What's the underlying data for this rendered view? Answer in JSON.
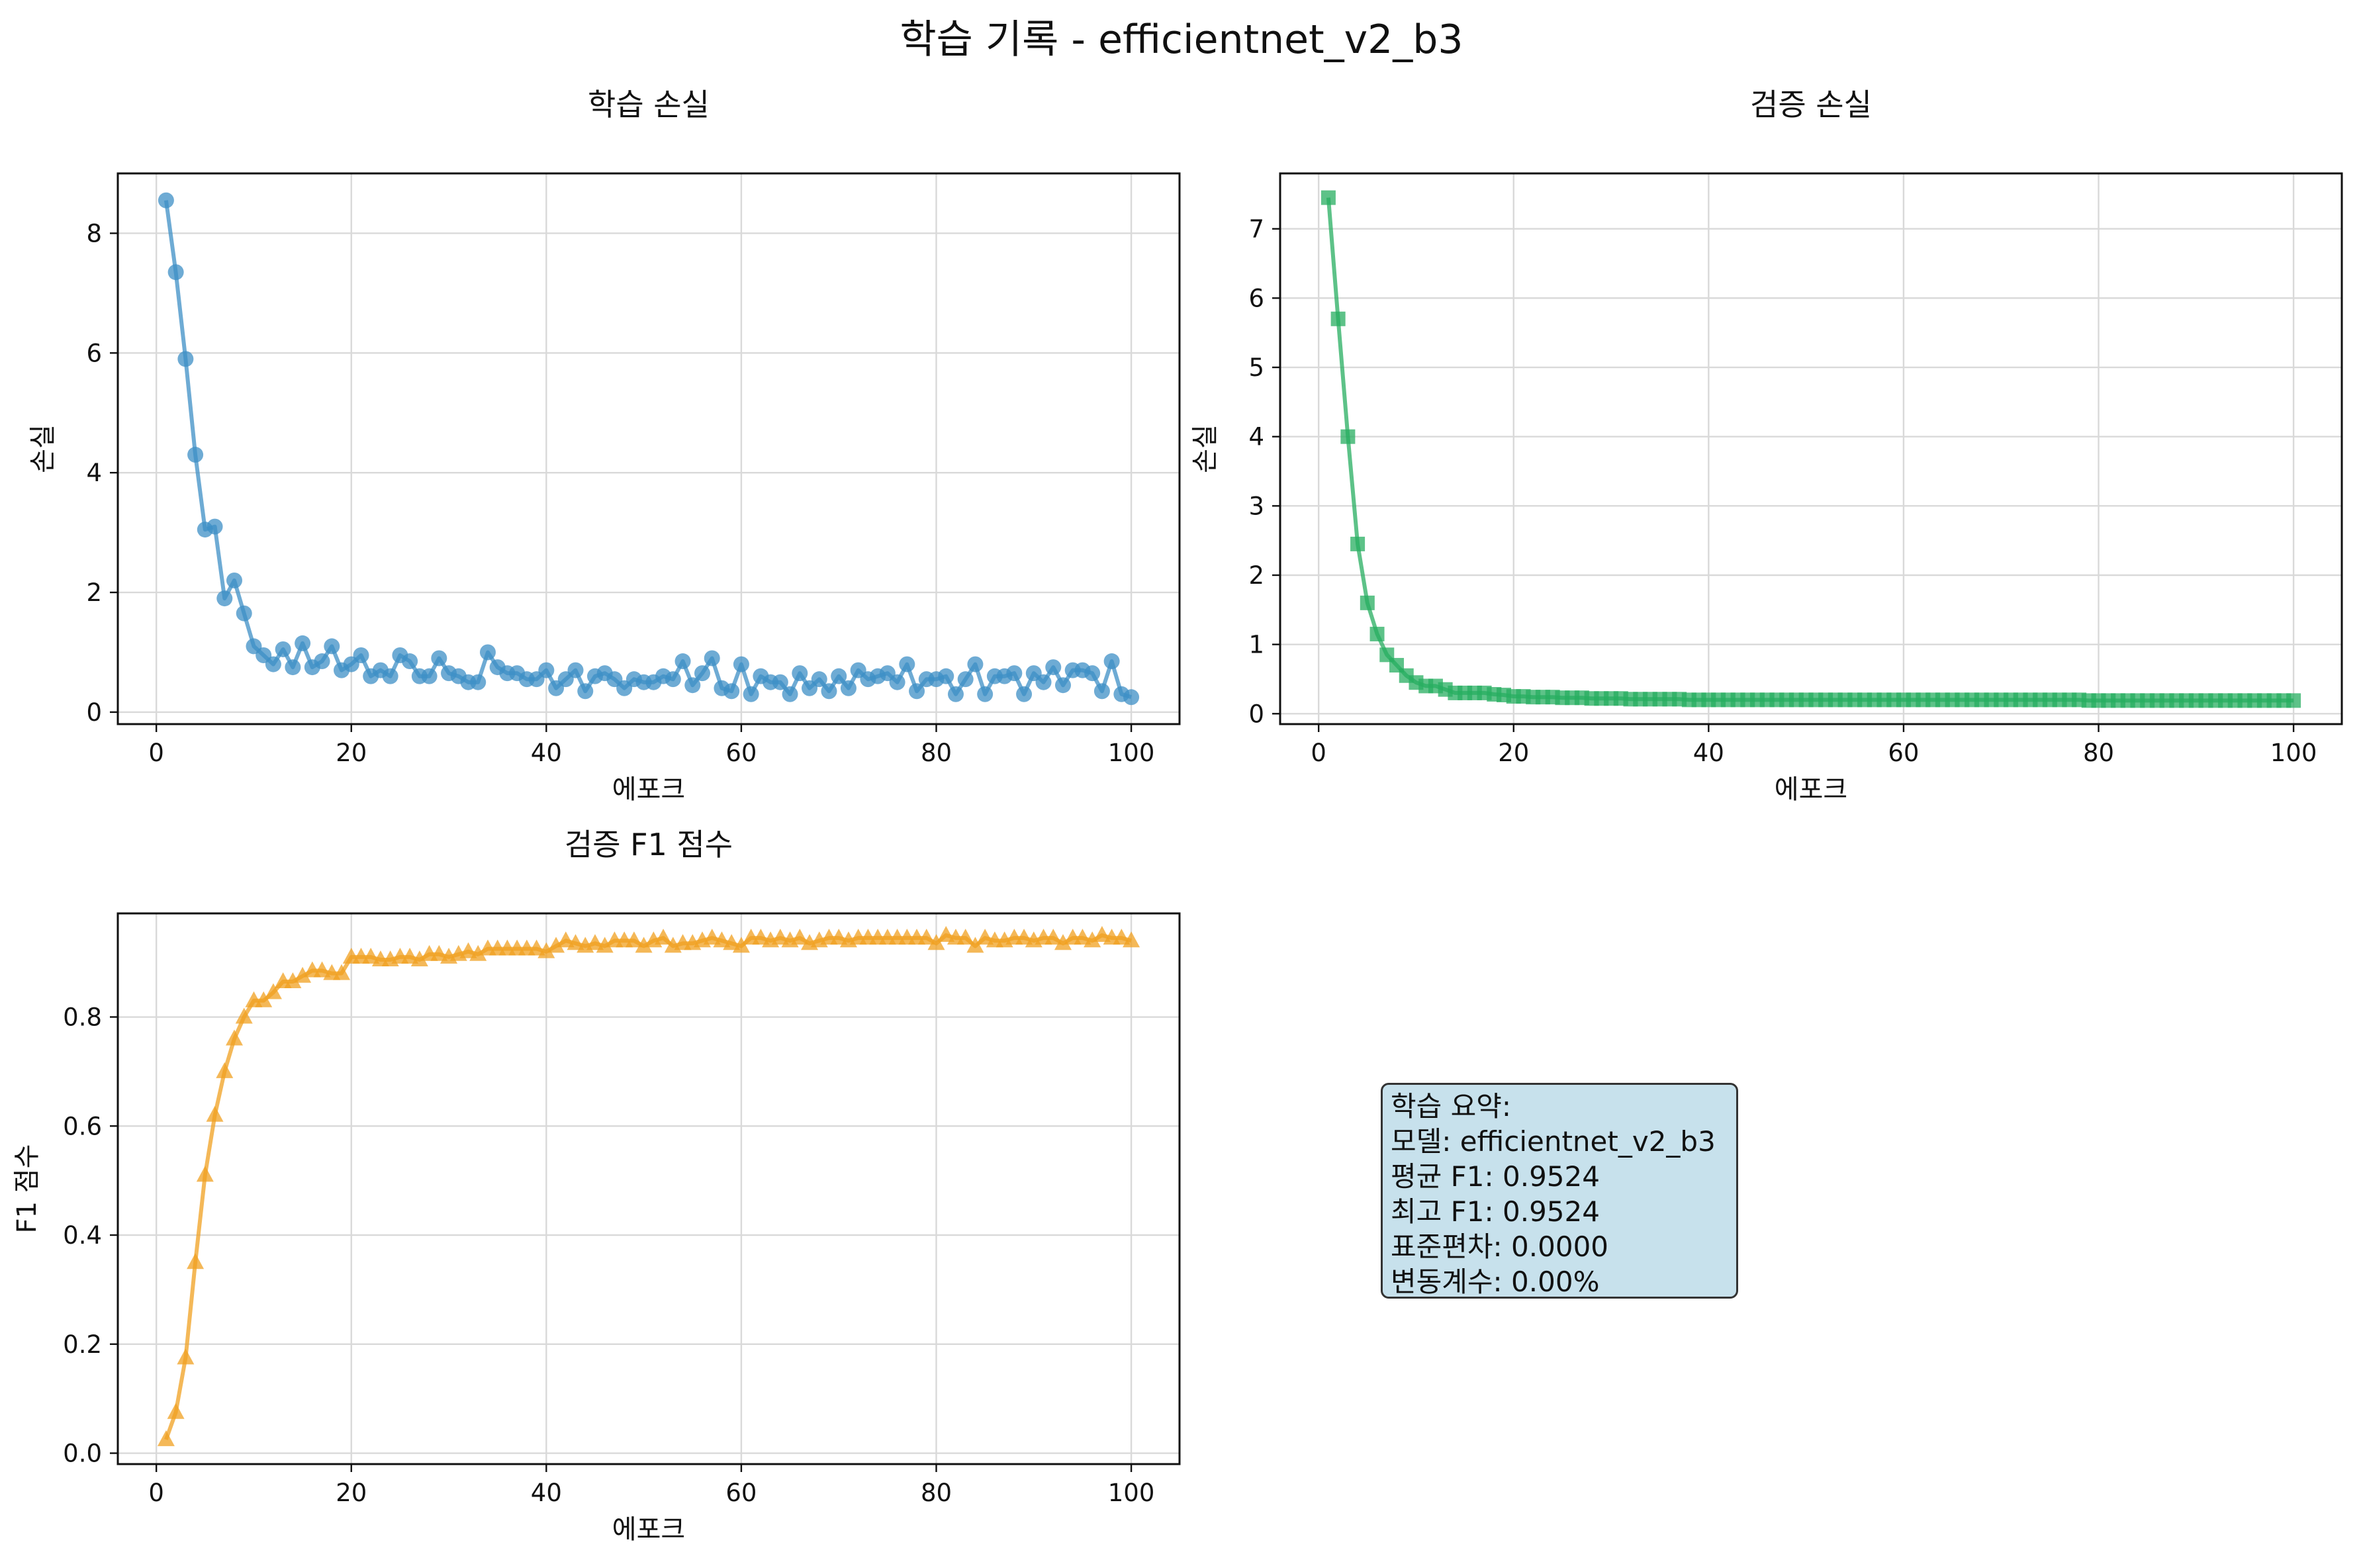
{
  "figure": {
    "title": "학습 기록 - efficientnet_v2_b3"
  },
  "summary": {
    "lines": [
      "학습 요약:",
      "모델: efficientnet_v2_b3",
      "평균 F1: 0.9524",
      "최고 F1: 0.9524",
      "표준편차: 0.0000",
      "변동계수: 0.00%"
    ]
  },
  "chart_data": [
    {
      "type": "line",
      "title": "학습 손실",
      "xlabel": "에포크",
      "ylabel": "손실",
      "xlim": [
        -3.95,
        104.95
      ],
      "ylim": [
        -0.2,
        9.0
      ],
      "xticks": [
        0,
        20,
        40,
        60,
        80,
        100
      ],
      "yticks": [
        0,
        2,
        4,
        6,
        8
      ],
      "ytick_labels": [
        "0",
        "2",
        "4",
        "6",
        "8"
      ],
      "grid": true,
      "marker": "circle",
      "color": "#3d8fc6",
      "series": [
        {
          "x": [
            1,
            2,
            3,
            4,
            5,
            6,
            7,
            8,
            9,
            10,
            11,
            12,
            13,
            14,
            15,
            16,
            17,
            18,
            19,
            20,
            21,
            22,
            23,
            24,
            25,
            26,
            27,
            28,
            29,
            30,
            31,
            32,
            33,
            34,
            35,
            36,
            37,
            38,
            39,
            40,
            41,
            42,
            43,
            44,
            45,
            46,
            47,
            48,
            49,
            50,
            51,
            52,
            53,
            54,
            55,
            56,
            57,
            58,
            59,
            60,
            61,
            62,
            63,
            64,
            65,
            66,
            67,
            68,
            69,
            70,
            71,
            72,
            73,
            74,
            75,
            76,
            77,
            78,
            79,
            80,
            81,
            82,
            83,
            84,
            85,
            86,
            87,
            88,
            89,
            90,
            91,
            92,
            93,
            94,
            95,
            96,
            97,
            98,
            99,
            100
          ],
          "values": [
            8.55,
            7.35,
            5.9,
            4.3,
            3.05,
            3.1,
            1.9,
            2.2,
            1.65,
            1.1,
            0.95,
            0.8,
            1.05,
            0.75,
            1.15,
            0.75,
            0.85,
            1.1,
            0.7,
            0.8,
            0.95,
            0.6,
            0.7,
            0.6,
            0.95,
            0.85,
            0.6,
            0.6,
            0.9,
            0.65,
            0.6,
            0.5,
            0.5,
            1.0,
            0.75,
            0.65,
            0.65,
            0.55,
            0.55,
            0.7,
            0.4,
            0.55,
            0.7,
            0.35,
            0.6,
            0.65,
            0.55,
            0.4,
            0.55,
            0.5,
            0.5,
            0.6,
            0.55,
            0.85,
            0.45,
            0.65,
            0.9,
            0.4,
            0.35,
            0.8,
            0.3,
            0.6,
            0.5,
            0.5,
            0.3,
            0.65,
            0.4,
            0.55,
            0.35,
            0.6,
            0.4,
            0.7,
            0.55,
            0.6,
            0.65,
            0.5,
            0.8,
            0.35,
            0.55,
            0.55,
            0.6,
            0.3,
            0.55,
            0.8,
            0.3,
            0.6,
            0.6,
            0.65,
            0.3,
            0.65,
            0.5,
            0.75,
            0.45,
            0.7,
            0.7,
            0.65,
            0.35,
            0.85,
            0.3,
            0.25
          ]
        }
      ]
    },
    {
      "type": "line",
      "title": "검증 손실",
      "xlabel": "에포크",
      "ylabel": "손실",
      "xlim": [
        -3.95,
        104.95
      ],
      "ylim": [
        -0.15,
        7.8
      ],
      "xticks": [
        0,
        20,
        40,
        60,
        80,
        100
      ],
      "yticks": [
        0,
        1,
        2,
        3,
        4,
        5,
        6,
        7
      ],
      "ytick_labels": [
        "0",
        "1",
        "2",
        "3",
        "4",
        "5",
        "6",
        "7"
      ],
      "grid": true,
      "marker": "square",
      "color": "#27ae60",
      "series": [
        {
          "x": [
            1,
            2,
            3,
            4,
            5,
            6,
            7,
            8,
            9,
            10,
            11,
            12,
            13,
            14,
            15,
            16,
            17,
            18,
            19,
            20,
            21,
            22,
            23,
            24,
            25,
            26,
            27,
            28,
            29,
            30,
            31,
            32,
            33,
            34,
            35,
            36,
            37,
            38,
            39,
            40,
            41,
            42,
            43,
            44,
            45,
            46,
            47,
            48,
            49,
            50,
            51,
            52,
            53,
            54,
            55,
            56,
            57,
            58,
            59,
            60,
            61,
            62,
            63,
            64,
            65,
            66,
            67,
            68,
            69,
            70,
            71,
            72,
            73,
            74,
            75,
            76,
            77,
            78,
            79,
            80,
            81,
            82,
            83,
            84,
            85,
            86,
            87,
            88,
            89,
            90,
            91,
            92,
            93,
            94,
            95,
            96,
            97,
            98,
            99,
            100
          ],
          "values": [
            7.45,
            5.7,
            4.0,
            2.45,
            1.6,
            1.15,
            0.85,
            0.7,
            0.55,
            0.45,
            0.4,
            0.4,
            0.35,
            0.3,
            0.3,
            0.3,
            0.3,
            0.28,
            0.27,
            0.25,
            0.25,
            0.24,
            0.24,
            0.24,
            0.23,
            0.23,
            0.23,
            0.22,
            0.22,
            0.22,
            0.22,
            0.21,
            0.21,
            0.21,
            0.21,
            0.21,
            0.21,
            0.2,
            0.2,
            0.2,
            0.2,
            0.2,
            0.2,
            0.2,
            0.2,
            0.2,
            0.2,
            0.2,
            0.2,
            0.2,
            0.2,
            0.2,
            0.2,
            0.2,
            0.2,
            0.2,
            0.2,
            0.2,
            0.2,
            0.2,
            0.2,
            0.2,
            0.2,
            0.2,
            0.2,
            0.2,
            0.2,
            0.2,
            0.2,
            0.2,
            0.2,
            0.2,
            0.2,
            0.2,
            0.2,
            0.2,
            0.2,
            0.2,
            0.19,
            0.19,
            0.19,
            0.19,
            0.19,
            0.19,
            0.19,
            0.19,
            0.19,
            0.19,
            0.19,
            0.19,
            0.19,
            0.19,
            0.19,
            0.19,
            0.19,
            0.19,
            0.19,
            0.19,
            0.19,
            0.19
          ]
        }
      ]
    },
    {
      "type": "line",
      "title": "검증 F1 점수",
      "xlabel": "에포크",
      "ylabel": "F1 점수",
      "xlim": [
        -3.95,
        104.95
      ],
      "ylim": [
        -0.02,
        0.99
      ],
      "xticks": [
        0,
        20,
        40,
        60,
        80,
        100
      ],
      "yticks": [
        0.0,
        0.2,
        0.4,
        0.6,
        0.8
      ],
      "ytick_labels": [
        "0.0",
        "0.2",
        "0.4",
        "0.6",
        "0.8"
      ],
      "grid": true,
      "marker": "triangle",
      "color": "#f0a020",
      "series": [
        {
          "x": [
            1,
            2,
            3,
            4,
            5,
            6,
            7,
            8,
            9,
            10,
            11,
            12,
            13,
            14,
            15,
            16,
            17,
            18,
            19,
            20,
            21,
            22,
            23,
            24,
            25,
            26,
            27,
            28,
            29,
            30,
            31,
            32,
            33,
            34,
            35,
            36,
            37,
            38,
            39,
            40,
            41,
            42,
            43,
            44,
            45,
            46,
            47,
            48,
            49,
            50,
            51,
            52,
            53,
            54,
            55,
            56,
            57,
            58,
            59,
            60,
            61,
            62,
            63,
            64,
            65,
            66,
            67,
            68,
            69,
            70,
            71,
            72,
            73,
            74,
            75,
            76,
            77,
            78,
            79,
            80,
            81,
            82,
            83,
            84,
            85,
            86,
            87,
            88,
            89,
            90,
            91,
            92,
            93,
            94,
            95,
            96,
            97,
            98,
            99,
            100
          ],
          "values": [
            0.025,
            0.075,
            0.175,
            0.35,
            0.51,
            0.62,
            0.7,
            0.76,
            0.8,
            0.83,
            0.83,
            0.845,
            0.865,
            0.865,
            0.875,
            0.885,
            0.885,
            0.88,
            0.88,
            0.91,
            0.91,
            0.91,
            0.905,
            0.905,
            0.91,
            0.91,
            0.905,
            0.915,
            0.915,
            0.91,
            0.915,
            0.92,
            0.915,
            0.925,
            0.925,
            0.925,
            0.925,
            0.925,
            0.925,
            0.92,
            0.93,
            0.94,
            0.935,
            0.93,
            0.935,
            0.93,
            0.94,
            0.94,
            0.94,
            0.93,
            0.94,
            0.945,
            0.93,
            0.935,
            0.935,
            0.94,
            0.945,
            0.94,
            0.935,
            0.93,
            0.945,
            0.945,
            0.94,
            0.945,
            0.94,
            0.945,
            0.935,
            0.94,
            0.945,
            0.945,
            0.94,
            0.945,
            0.945,
            0.945,
            0.945,
            0.945,
            0.945,
            0.945,
            0.945,
            0.935,
            0.95,
            0.945,
            0.945,
            0.93,
            0.945,
            0.94,
            0.94,
            0.945,
            0.945,
            0.94,
            0.945,
            0.945,
            0.935,
            0.945,
            0.945,
            0.94,
            0.95,
            0.945,
            0.945,
            0.94
          ]
        }
      ]
    }
  ]
}
